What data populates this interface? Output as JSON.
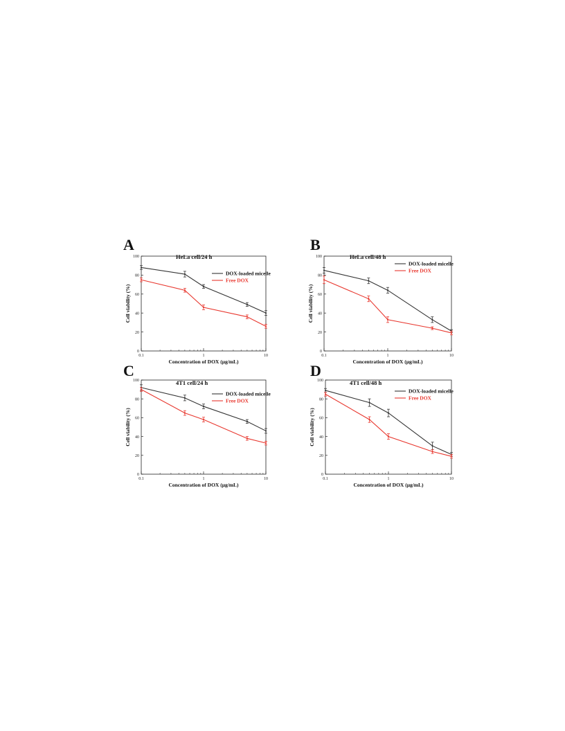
{
  "chart_data": [
    {
      "panel": "A",
      "title": "HeLa cell/24 h",
      "type": "line",
      "x_scale": "log",
      "xlabel": "Concentration of DOX (μg/mL)",
      "ylabel": "Cell viability (%)",
      "xlim": [
        0.1,
        10
      ],
      "ylim": [
        0,
        100
      ],
      "x_ticks": [
        "0.1",
        "1",
        "10"
      ],
      "y_ticks": [
        "0",
        "20",
        "40",
        "60",
        "80",
        "100"
      ],
      "grid": false,
      "legend_position": "top-right",
      "x": [
        0.1,
        0.5,
        1,
        5,
        10
      ],
      "series": [
        {
          "name": "DOX-loaded micelle",
          "color": "#333333",
          "values": [
            88,
            81,
            68,
            49,
            40
          ],
          "errors": [
            2,
            3,
            2,
            2,
            2.5
          ]
        },
        {
          "name": "Free DOX",
          "color": "#e8362d",
          "values": [
            75,
            64,
            46,
            36,
            26
          ],
          "errors": [
            2,
            2,
            2.5,
            2,
            2
          ]
        }
      ]
    },
    {
      "panel": "B",
      "title": "HeLa cell/48 h",
      "type": "line",
      "x_scale": "log",
      "xlabel": "Concentration of DOX (μg/mL)",
      "ylabel": "Cell viability (%)",
      "xlim": [
        0.1,
        10
      ],
      "ylim": [
        0,
        100
      ],
      "x_ticks": [
        "0.1",
        "1",
        "10"
      ],
      "y_ticks": [
        "0",
        "20",
        "40",
        "60",
        "80",
        "100"
      ],
      "grid": false,
      "legend_position": "top-right",
      "x": [
        0.1,
        0.5,
        1,
        5,
        10
      ],
      "series": [
        {
          "name": "DOX-loaded micelle",
          "color": "#333333",
          "values": [
            85,
            74,
            64,
            33,
            21
          ],
          "errors": [
            3,
            3,
            3,
            3,
            1.5
          ]
        },
        {
          "name": "Free DOX",
          "color": "#e8362d",
          "values": [
            75,
            55,
            33,
            24,
            19
          ],
          "errors": [
            4,
            3,
            3,
            1.5,
            2
          ]
        }
      ]
    },
    {
      "panel": "C",
      "title": "4T1 cell/24 h",
      "type": "line",
      "x_scale": "log",
      "xlabel": "Concentration of DOX (μg/mL)",
      "ylabel": "Cell viability (%)",
      "xlim": [
        0.1,
        10
      ],
      "ylim": [
        0,
        100
      ],
      "x_ticks": [
        "0.1",
        "1",
        "10"
      ],
      "y_ticks": [
        "0",
        "20",
        "40",
        "60",
        "80",
        "100"
      ],
      "grid": false,
      "legend_position": "top-right",
      "x": [
        0.1,
        0.5,
        1,
        5,
        10
      ],
      "series": [
        {
          "name": "DOX-loaded micelle",
          "color": "#333333",
          "values": [
            92,
            81,
            72,
            56,
            46
          ],
          "errors": [
            3,
            3,
            2.5,
            2,
            2.5
          ]
        },
        {
          "name": "Free DOX",
          "color": "#e8362d",
          "values": [
            90,
            65,
            58,
            38,
            33
          ],
          "errors": [
            2,
            2.5,
            2.5,
            2,
            2
          ]
        }
      ]
    },
    {
      "panel": "D",
      "title": "4T1 cell/48 h",
      "type": "line",
      "x_scale": "log",
      "xlabel": "Concentration of DOX (μg/mL)",
      "ylabel": "Cell viability (%)",
      "xlim": [
        0.1,
        10
      ],
      "ylim": [
        0,
        100
      ],
      "x_ticks": [
        "0.1",
        "1",
        "10"
      ],
      "y_ticks": [
        "0",
        "20",
        "40",
        "60",
        "80",
        "100"
      ],
      "grid": false,
      "legend_position": "top-right",
      "x": [
        0.1,
        0.5,
        1,
        5,
        10
      ],
      "series": [
        {
          "name": "DOX-loaded micelle",
          "color": "#333333",
          "values": [
            89,
            76,
            65,
            30,
            21
          ],
          "errors": [
            2,
            4,
            4,
            4,
            2
          ]
        },
        {
          "name": "Free DOX",
          "color": "#e8362d",
          "values": [
            85,
            58,
            40,
            24,
            19
          ],
          "errors": [
            2,
            3,
            3,
            2,
            2
          ]
        }
      ]
    }
  ]
}
